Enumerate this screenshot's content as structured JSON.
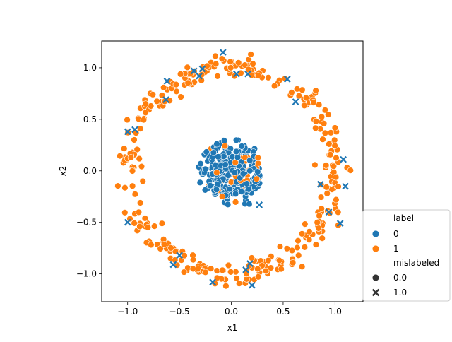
{
  "chart_data": {
    "type": "scatter",
    "title": "",
    "xlabel": "x1",
    "ylabel": "x2",
    "xlim": [
      -1.25,
      1.27
    ],
    "ylim": [
      -1.27,
      1.26
    ],
    "xticks": [
      -1.0,
      -0.5,
      0.0,
      0.5,
      1.0
    ],
    "xtick_labels": [
      "−1.0",
      "−0.5",
      "0.0",
      "0.5",
      "1.0"
    ],
    "yticks": [
      -1.0,
      -0.5,
      0.0,
      0.5,
      1.0
    ],
    "ytick_labels": [
      "−1.0",
      "−0.5",
      "0.0",
      "0.5",
      "1.0"
    ],
    "grid": false,
    "legend": {
      "placement": "outside-bottom-right",
      "hue_title": "label",
      "hue_entries": [
        {
          "label": "0",
          "color": "#1f77b4"
        },
        {
          "label": "1",
          "color": "#ff7f0e"
        }
      ],
      "style_title": "mislabeled",
      "style_entries": [
        {
          "label": "0.0",
          "marker": "circle"
        },
        {
          "label": "1.0",
          "marker": "x"
        }
      ]
    },
    "series": [
      {
        "label": "0",
        "color": "#1f77b4",
        "description": "inner cluster of label-0 points centered near the origin, radius about 0.3",
        "center": [
          0.0,
          0.0
        ],
        "radius": 0.3,
        "count": 250
      },
      {
        "label": "1",
        "color": "#ff7f0e",
        "description": "outer ring of label-1 points at radius about 1.0",
        "center": [
          0.0,
          0.0
        ],
        "radius": 1.0,
        "count": 330
      }
    ],
    "mislabeled_points": [
      {
        "x": -0.08,
        "y": 1.15,
        "label": "0"
      },
      {
        "x": 0.05,
        "y": 0.94,
        "label": "0"
      },
      {
        "x": 0.16,
        "y": 0.94,
        "label": "0"
      },
      {
        "x": -0.36,
        "y": 0.97,
        "label": "0"
      },
      {
        "x": -0.31,
        "y": 0.92,
        "label": "0"
      },
      {
        "x": -0.28,
        "y": 0.99,
        "label": "0"
      },
      {
        "x": -0.62,
        "y": 0.87,
        "label": "0"
      },
      {
        "x": -0.63,
        "y": 0.69,
        "label": "0"
      },
      {
        "x": 0.54,
        "y": 0.89,
        "label": "0"
      },
      {
        "x": 0.62,
        "y": 0.67,
        "label": "0"
      },
      {
        "x": -1.0,
        "y": 0.38,
        "label": "0"
      },
      {
        "x": -0.93,
        "y": 0.4,
        "label": "0"
      },
      {
        "x": 1.08,
        "y": 0.11,
        "label": "0"
      },
      {
        "x": 1.1,
        "y": -0.15,
        "label": "0"
      },
      {
        "x": 0.86,
        "y": -0.13,
        "label": "0"
      },
      {
        "x": 0.94,
        "y": -0.4,
        "label": "0"
      },
      {
        "x": 1.05,
        "y": -0.51,
        "label": "0"
      },
      {
        "x": -1.0,
        "y": -0.5,
        "label": "0"
      },
      {
        "x": -0.5,
        "y": -0.82,
        "label": "0"
      },
      {
        "x": -0.56,
        "y": -0.91,
        "label": "0"
      },
      {
        "x": 0.18,
        "y": -0.9,
        "label": "0"
      },
      {
        "x": 0.14,
        "y": -0.96,
        "label": "0"
      },
      {
        "x": -0.18,
        "y": -1.08,
        "label": "0"
      },
      {
        "x": 0.2,
        "y": -1.11,
        "label": "0"
      },
      {
        "x": 0.27,
        "y": -0.33,
        "label": "0"
      }
    ]
  }
}
